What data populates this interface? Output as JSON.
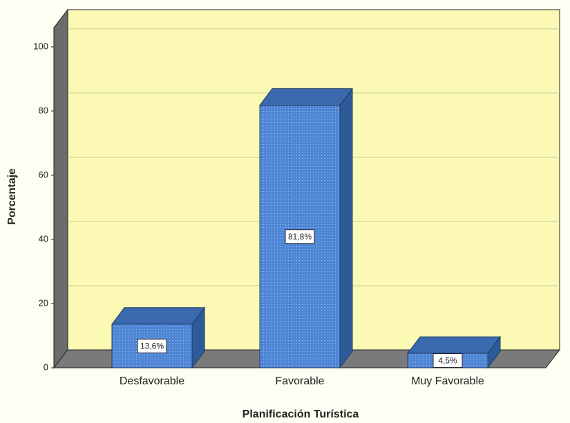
{
  "chart_data": {
    "type": "bar3d",
    "categories": [
      "Desfavorable",
      "Favorable",
      "Muy Favorable"
    ],
    "values": [
      13.6,
      81.8,
      4.5
    ],
    "value_labels": [
      "13,6%",
      "81,8%",
      "4,5%"
    ],
    "color": "#4f86d6",
    "ylim": [
      0,
      106
    ],
    "yticks": [
      0,
      20,
      40,
      60,
      80,
      100
    ],
    "ylabel": "Porcentaje",
    "xlabel": "Planificación Turística",
    "grid": true
  }
}
